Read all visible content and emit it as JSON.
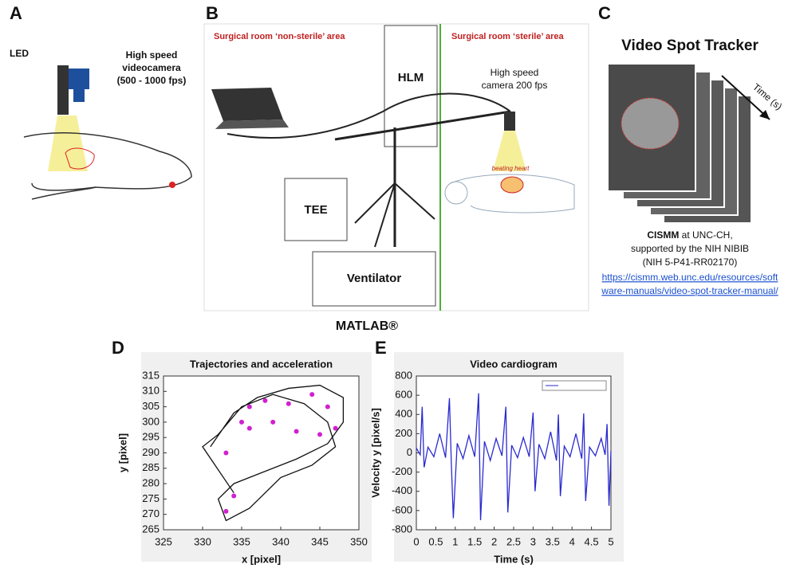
{
  "panels": {
    "a": {
      "label": "A",
      "led": "LED",
      "camera": [
        "High speed",
        "videocamera",
        "(500 - 1000 fps)"
      ]
    },
    "b": {
      "label": "B",
      "non_sterile": "Surgical room ‘non-sterile’ area",
      "sterile": "Surgical room ‘sterile’ area",
      "hlm": "HLM",
      "camera": [
        "High speed",
        "camera 200 fps"
      ],
      "heart": "beating heart",
      "tee": "TEE",
      "ventilator": "Ventilator"
    },
    "c": {
      "label": "C",
      "title": "Video Spot Tracker",
      "time": "Time (s)",
      "cismm": "CISMM",
      "cismm_rest": " at UNC-CH,",
      "supported": "supported by the NIH NIBIB",
      "grant": "(NIH 5-P41-RR02170)",
      "link": [
        "https://cismm.web.unc.edu/resources/soft",
        "ware-manuals/video-spot-tracker-manual/"
      ]
    },
    "matlab": "MATLAB®",
    "d": {
      "label": "D"
    },
    "e": {
      "label": "E"
    }
  },
  "chart_data": [
    {
      "type": "line",
      "title": "Trajectories and acceleration",
      "xlabel": "x [pixel]",
      "ylabel": "y [pixel]",
      "xlim": [
        325,
        350
      ],
      "xticks": [
        325,
        330,
        335,
        340,
        345,
        350
      ],
      "ylim": [
        265,
        315
      ],
      "yticks": [
        265,
        270,
        275,
        280,
        285,
        290,
        295,
        300,
        305,
        310,
        315
      ],
      "series": [
        {
          "color": "#111111",
          "style": "line",
          "x": [
            331,
            334,
            337,
            341,
            345,
            348,
            348,
            346,
            342,
            338,
            334,
            332,
            333,
            336,
            340,
            344,
            347,
            346,
            343,
            339,
            335,
            332,
            330,
            334
          ],
          "values": [
            292,
            303,
            308,
            311,
            312,
            308,
            300,
            293,
            288,
            284,
            280,
            275,
            268,
            272,
            282,
            286,
            292,
            300,
            306,
            309,
            305,
            296,
            292,
            277
          ]
        },
        {
          "color": "#d020d0",
          "style": "points",
          "x": [
            333,
            335,
            336,
            338,
            341,
            344,
            346,
            347,
            345,
            342,
            339,
            336,
            334,
            333
          ],
          "values": [
            290,
            300,
            305,
            307,
            306,
            309,
            305,
            298,
            296,
            297,
            300,
            298,
            276,
            271
          ]
        }
      ]
    },
    {
      "type": "line",
      "title": "Video cardiogram",
      "xlabel": "Time (s)",
      "ylabel": "Velocity y [pixel/s]",
      "xlim": [
        0,
        5
      ],
      "xticks": [
        0,
        0.5,
        1,
        1.5,
        2,
        2.5,
        3,
        3.5,
        4,
        4.5,
        5
      ],
      "ylim": [
        -800,
        800
      ],
      "yticks": [
        -800,
        -600,
        -400,
        -200,
        0,
        200,
        400,
        600,
        800
      ],
      "series": [
        {
          "color": "#2a2ad0",
          "style": "line",
          "x": [
            0,
            0.1,
            0.15,
            0.2,
            0.3,
            0.45,
            0.6,
            0.75,
            0.85,
            0.9,
            0.95,
            1.05,
            1.2,
            1.35,
            1.5,
            1.6,
            1.65,
            1.75,
            1.9,
            2.05,
            2.2,
            2.3,
            2.35,
            2.45,
            2.6,
            2.75,
            2.9,
            3.0,
            3.05,
            3.15,
            3.3,
            3.45,
            3.6,
            3.65,
            3.7,
            3.8,
            3.95,
            4.1,
            4.25,
            4.3,
            4.35,
            4.45,
            4.6,
            4.75,
            4.85,
            4.9,
            4.95,
            5.0
          ],
          "values": [
            50,
            -20,
            480,
            -150,
            60,
            -40,
            200,
            -50,
            570,
            -120,
            -680,
            100,
            -60,
            180,
            -40,
            620,
            -700,
            120,
            -80,
            150,
            -30,
            480,
            -620,
            80,
            -50,
            160,
            -40,
            420,
            -400,
            90,
            -60,
            220,
            -80,
            400,
            -450,
            70,
            -40,
            200,
            -60,
            410,
            -500,
            60,
            -30,
            150,
            -20,
            300,
            -550,
            20
          ]
        }
      ]
    }
  ]
}
